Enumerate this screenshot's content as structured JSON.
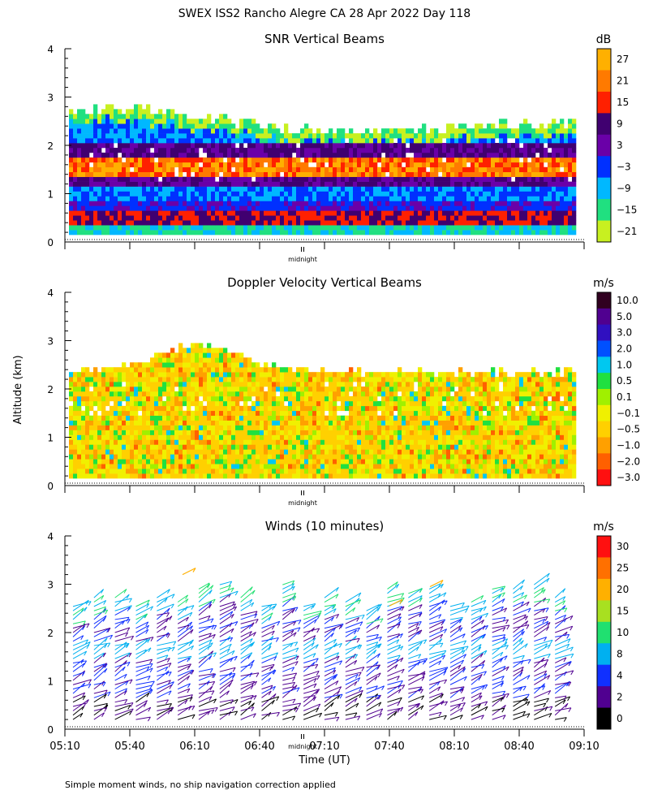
{
  "title": "SWEX ISS2 Rancho Alegre CA  28 Apr 2022 Day 118",
  "panels": [
    {
      "title": "SNR Vertical Beams",
      "unit": "dB",
      "colorbar_labels": [
        "27",
        "21",
        "15",
        "9",
        "3",
        "−3",
        "−9",
        "−15",
        "−21"
      ],
      "colorbar_colors": [
        "#ffb000",
        "#ff7a00",
        "#ff2000",
        "#400070",
        "#6a00a8",
        "#0030ff",
        "#00b8ff",
        "#20e080",
        "#c8f020"
      ]
    },
    {
      "title": "Doppler Velocity Vertical Beams",
      "unit": "m/s",
      "colorbar_labels": [
        "10.0",
        "5.0",
        "3.0",
        "2.0",
        "1.0",
        "0.5",
        "0.1",
        "−0.1",
        "−0.5",
        "−1.0",
        "−2.0",
        "−3.0"
      ],
      "colorbar_colors": [
        "#300020",
        "#500090",
        "#3010c0",
        "#0050ff",
        "#00c8f0",
        "#20e040",
        "#a0f000",
        "#f0f000",
        "#ffd000",
        "#ffa000",
        "#ff6000",
        "#ff1010"
      ]
    },
    {
      "title": "Winds (10 minutes)",
      "unit": "m/s",
      "colorbar_labels": [
        "30",
        "25",
        "20",
        "15",
        "10",
        "8",
        "4",
        "2",
        "0"
      ],
      "colorbar_colors": [
        "#ff1010",
        "#ff7000",
        "#ffb000",
        "#a8e020",
        "#20e070",
        "#00b0f0",
        "#1030ff",
        "#500090",
        "#000000"
      ]
    }
  ],
  "y_axis_label": "Altitude (km)",
  "x_axis_label": "Time (UT)",
  "midnight_label": "midnight",
  "x_tick_labels": [
    "05:10",
    "05:40",
    "06:10",
    "06:40",
    "07:10",
    "07:40",
    "08:10",
    "08:40",
    "09:10"
  ],
  "y_tick_labels": [
    "0",
    "1",
    "2",
    "3",
    "4"
  ],
  "footnote": "Simple moment winds, no ship navigation correction applied",
  "chart_data": [
    {
      "type": "heatmap",
      "title": "SNR Vertical Beams",
      "colorbar_unit": "dB",
      "xlabel": "",
      "ylabel": "Altitude (km)",
      "x_range_ut": [
        "05:10",
        "09:10"
      ],
      "ylim": [
        0,
        4
      ],
      "x_ticks": [
        "05:10",
        "05:40",
        "06:10",
        "06:40",
        "07:10",
        "07:40",
        "08:10",
        "08:40",
        "09:10"
      ],
      "color_levels_db": [
        -21,
        -15,
        -9,
        -3,
        3,
        9,
        15,
        21,
        27
      ],
      "data_top_km_by_hour": {
        "05:10": 2.6,
        "06:10": 2.8,
        "07:10": 2.5,
        "08:10": 2.4,
        "09:10": 2.4
      }
    },
    {
      "type": "heatmap",
      "title": "Doppler Velocity Vertical Beams",
      "colorbar_unit": "m/s",
      "xlabel": "",
      "ylabel": "Altitude (km)",
      "x_range_ut": [
        "05:10",
        "09:10"
      ],
      "ylim": [
        0,
        4
      ],
      "x_ticks": [
        "05:10",
        "05:40",
        "06:10",
        "06:40",
        "07:10",
        "07:40",
        "08:10",
        "08:40",
        "09:10"
      ],
      "color_levels_ms": [
        -3.0,
        -2.0,
        -1.0,
        -0.5,
        -0.1,
        0.1,
        0.5,
        1.0,
        2.0,
        3.0,
        5.0,
        10.0
      ],
      "data_top_km_by_hour": {
        "05:10": 2.5,
        "06:10": 3.0,
        "07:10": 2.3,
        "08:10": 2.3,
        "09:10": 2.3
      }
    },
    {
      "type": "wind_barbs",
      "title": "Winds (10 minutes)",
      "colorbar_unit": "m/s",
      "xlabel": "Time (UT)",
      "ylabel": "Altitude (km)",
      "x_range_ut": [
        "05:10",
        "09:10"
      ],
      "ylim": [
        0,
        4
      ],
      "x_ticks": [
        "05:10",
        "05:40",
        "06:10",
        "06:40",
        "07:10",
        "07:40",
        "08:10",
        "08:40",
        "09:10"
      ],
      "speed_levels_ms": [
        0,
        2,
        4,
        8,
        10,
        15,
        20,
        25,
        30
      ],
      "profile_interval_min": 10,
      "profile_count": 24
    }
  ]
}
